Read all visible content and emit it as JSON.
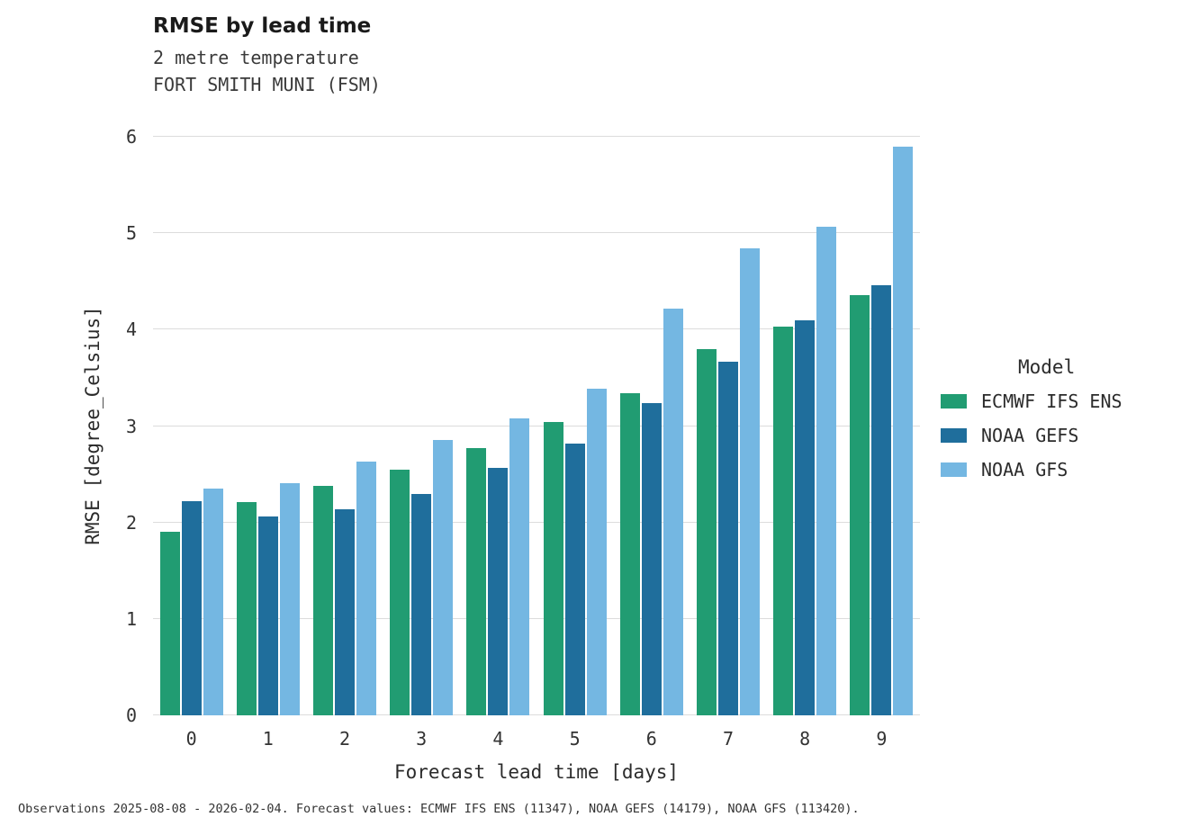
{
  "header": {
    "title": "RMSE by lead time",
    "subtitle1": "2 metre temperature",
    "subtitle2": "FORT SMITH MUNI (FSM)"
  },
  "footer": {
    "note": "Observations 2025-08-08 - 2026-02-04. Forecast values: ECMWF IFS ENS (11347), NOAA GEFS (14179), NOAA GFS (113420)."
  },
  "chart_data": {
    "type": "bar",
    "title": "RMSE by lead time",
    "subtitle": [
      "2 metre temperature",
      "FORT SMITH MUNI (FSM)"
    ],
    "xlabel": "Forecast lead time [days]",
    "ylabel": "RMSE [degree_Celsius]",
    "legend_title": "Model",
    "legend_position": "right",
    "grid": "horizontal",
    "categories": [
      "0",
      "1",
      "2",
      "3",
      "4",
      "5",
      "6",
      "7",
      "8",
      "9"
    ],
    "ylim": [
      0,
      6
    ],
    "yticks": [
      0,
      1,
      2,
      3,
      4,
      5,
      6
    ],
    "series": [
      {
        "name": "ECMWF IFS ENS",
        "color": "#219c72",
        "values": [
          1.9,
          2.21,
          2.38,
          2.55,
          2.77,
          3.04,
          3.34,
          3.8,
          4.03,
          4.36
        ]
      },
      {
        "name": "NOAA GEFS",
        "color": "#1f6e9c",
        "values": [
          2.22,
          2.06,
          2.14,
          2.3,
          2.57,
          2.82,
          3.24,
          3.67,
          4.1,
          4.46
        ]
      },
      {
        "name": "NOAA GFS",
        "color": "#74b7e2",
        "values": [
          2.35,
          2.41,
          2.63,
          2.86,
          3.08,
          3.39,
          4.22,
          4.84,
          5.07,
          5.9
        ]
      }
    ]
  }
}
